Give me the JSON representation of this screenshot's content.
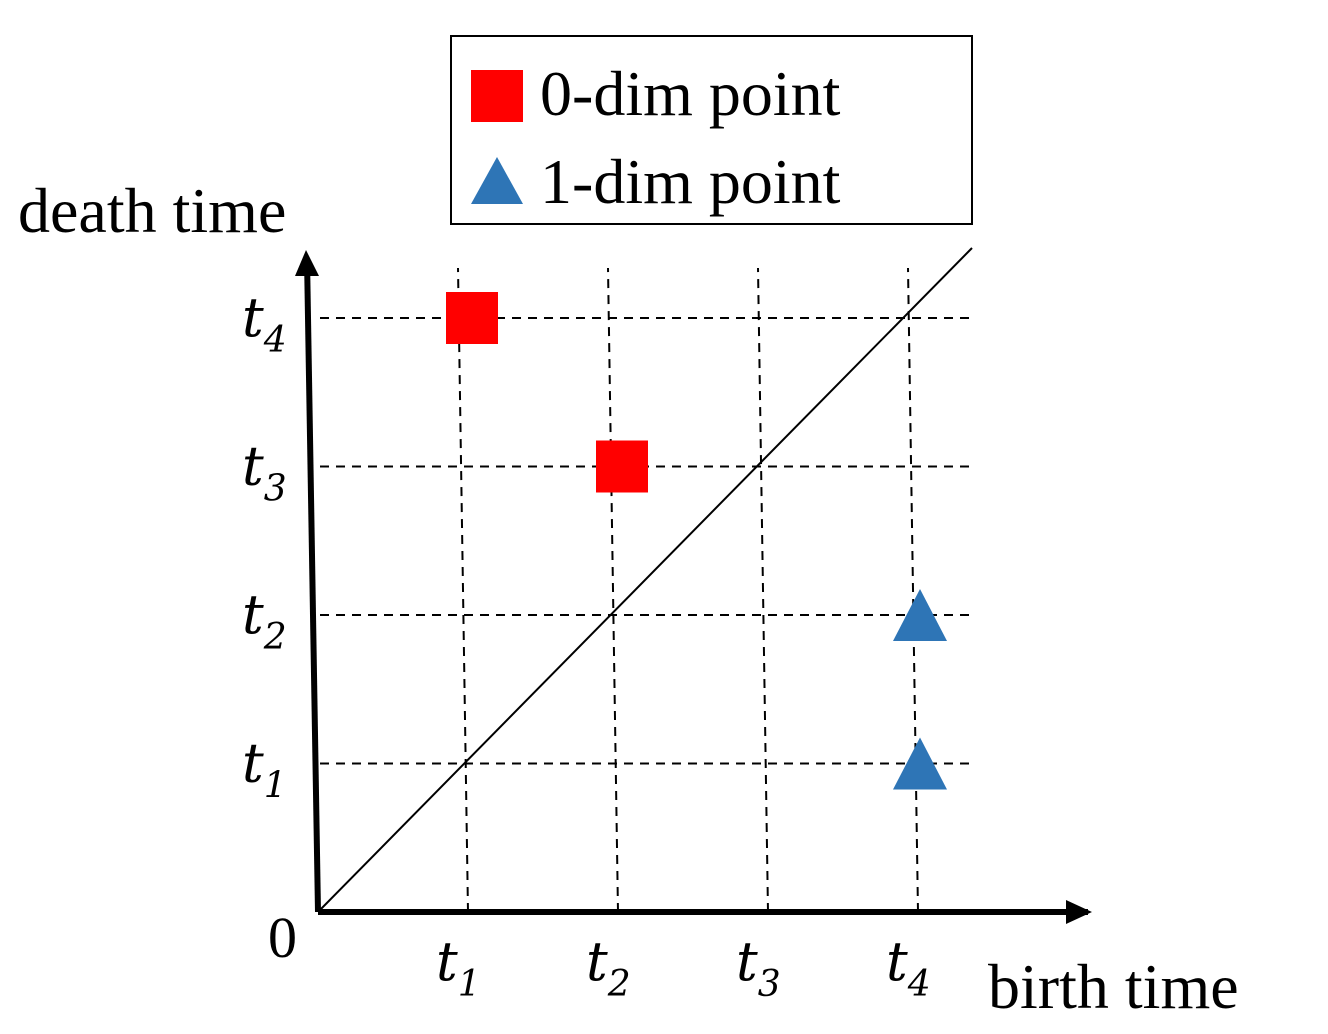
{
  "chart_data": {
    "type": "scatter",
    "title": "",
    "xlabel": "birth time",
    "ylabel": "death time",
    "origin_label": "0",
    "ticks": [
      {
        "main": "t",
        "sub": "1",
        "value": 1
      },
      {
        "main": "t",
        "sub": "2",
        "value": 2
      },
      {
        "main": "t",
        "sub": "3",
        "value": 3
      },
      {
        "main": "t",
        "sub": "4",
        "value": 4
      }
    ],
    "xlim": [
      0,
      4.4
    ],
    "ylim": [
      0,
      4.6
    ],
    "grid": "dashed",
    "diagonal": true,
    "legend_position": "top-center",
    "series": [
      {
        "name": "0-dim point",
        "marker": "square",
        "color": "#ff0000",
        "points": [
          {
            "x": 1,
            "y": 4
          },
          {
            "x": 2,
            "y": 3
          }
        ]
      },
      {
        "name": "1-dim point",
        "marker": "triangle",
        "color": "#2e75b6",
        "points": [
          {
            "x": 4,
            "y": 2
          },
          {
            "x": 4,
            "y": 1
          }
        ]
      }
    ]
  }
}
